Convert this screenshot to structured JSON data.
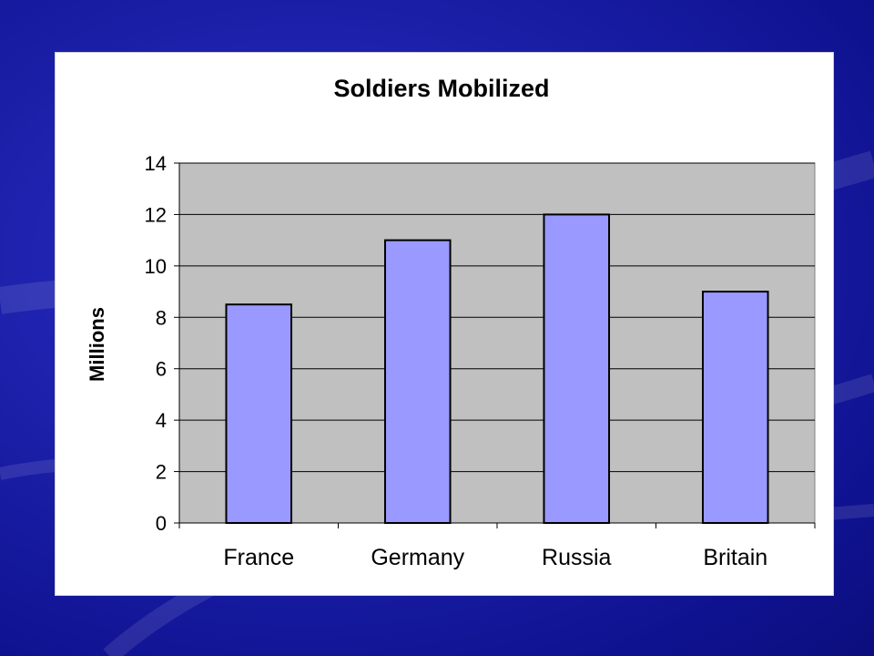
{
  "chart_data": {
    "type": "bar",
    "title": "Soldiers Mobilized",
    "xlabel": "",
    "ylabel": "Millions",
    "categories": [
      "France",
      "Germany",
      "Russia",
      "Britain"
    ],
    "values": [
      8.5,
      11,
      12,
      9
    ],
    "ylim": [
      0,
      14
    ],
    "yticks": [
      "0",
      "2",
      "4",
      "6",
      "8",
      "10",
      "12",
      "14"
    ],
    "grid": true,
    "legend": "none",
    "colors": {
      "bar_fill": "#9999ff",
      "bar_stroke": "#000000",
      "plot_background": "#c0c0c0",
      "gridline": "#000000",
      "text": "#000000"
    }
  }
}
